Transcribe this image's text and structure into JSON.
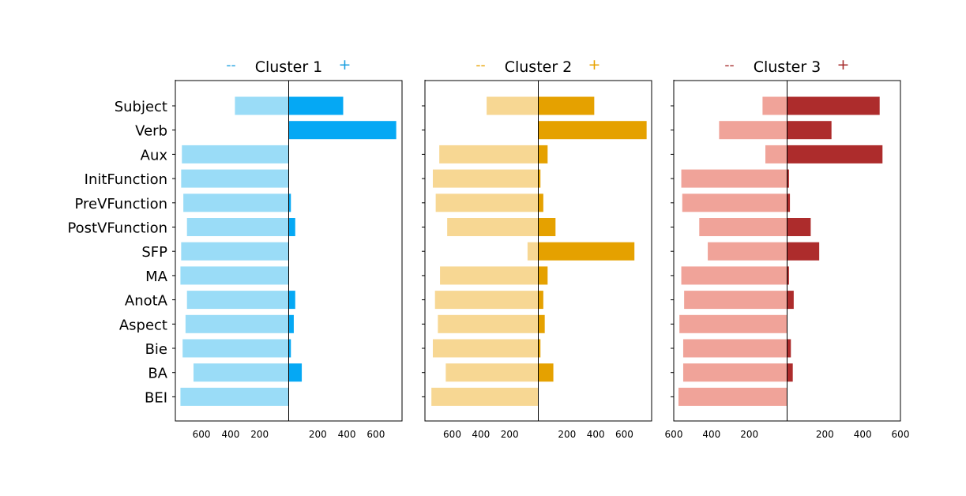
{
  "chart_data": {
    "type": "bar",
    "orientation": "horizontal-diverging",
    "categories": [
      "Subject",
      "Verb",
      "Aux",
      "InitFunction",
      "PreVFunction",
      "PostVFunction",
      "SFP",
      "MA",
      "AnotA",
      "Aspect",
      "Bie",
      "BA",
      "BEI"
    ],
    "panels": [
      {
        "title": "Cluster 1",
        "neg_marker": "--",
        "pos_marker": "+",
        "marker_color": "#1a9fe0",
        "neg_color": "#9adcf7",
        "pos_color": "#05a8f4",
        "xlim": [
          -780,
          780
        ],
        "xticks_left": [
          600,
          400,
          200
        ],
        "xticks_right": [
          200,
          400,
          600
        ],
        "series": [
          {
            "sign": "negative",
            "values": [
              370,
              0,
              735,
              740,
              725,
              700,
              740,
              745,
              700,
              710,
              730,
              655,
              745
            ]
          },
          {
            "sign": "positive",
            "values": [
              375,
              740,
              0,
              0,
              15,
              45,
              0,
              0,
              45,
              35,
              15,
              90,
              0
            ]
          }
        ]
      },
      {
        "title": "Cluster 2",
        "neg_marker": "--",
        "pos_marker": "+",
        "marker_color": "#e8a300",
        "neg_color": "#f7d793",
        "pos_color": "#e5a100",
        "xlim": [
          -790,
          790
        ],
        "xticks_left": [
          600,
          400,
          200
        ],
        "xticks_right": [
          200,
          400,
          600
        ],
        "series": [
          {
            "sign": "negative",
            "values": [
              360,
              0,
              690,
              735,
              715,
              635,
              75,
              685,
              720,
              700,
              735,
              645,
              745
            ]
          },
          {
            "sign": "positive",
            "values": [
              390,
              755,
              65,
              15,
              35,
              120,
              670,
              65,
              35,
              45,
              15,
              105,
              0
            ]
          }
        ]
      },
      {
        "title": "Cluster 3",
        "neg_marker": "--",
        "pos_marker": "+",
        "marker_color": "#a52a2a",
        "neg_color": "#f0a399",
        "pos_color": "#ad2c2c",
        "xlim": [
          -600,
          600
        ],
        "xticks_left": [
          600,
          400,
          200
        ],
        "xticks_right": [
          200,
          400,
          600
        ],
        "series": [
          {
            "sign": "negative",
            "values": [
              130,
              360,
              115,
              560,
              555,
              465,
              420,
              560,
              545,
              570,
              550,
              550,
              575
            ]
          },
          {
            "sign": "positive",
            "values": [
              490,
              235,
              505,
              10,
              15,
              125,
              170,
              10,
              35,
              0,
              20,
              30,
              0
            ]
          }
        ]
      }
    ]
  }
}
